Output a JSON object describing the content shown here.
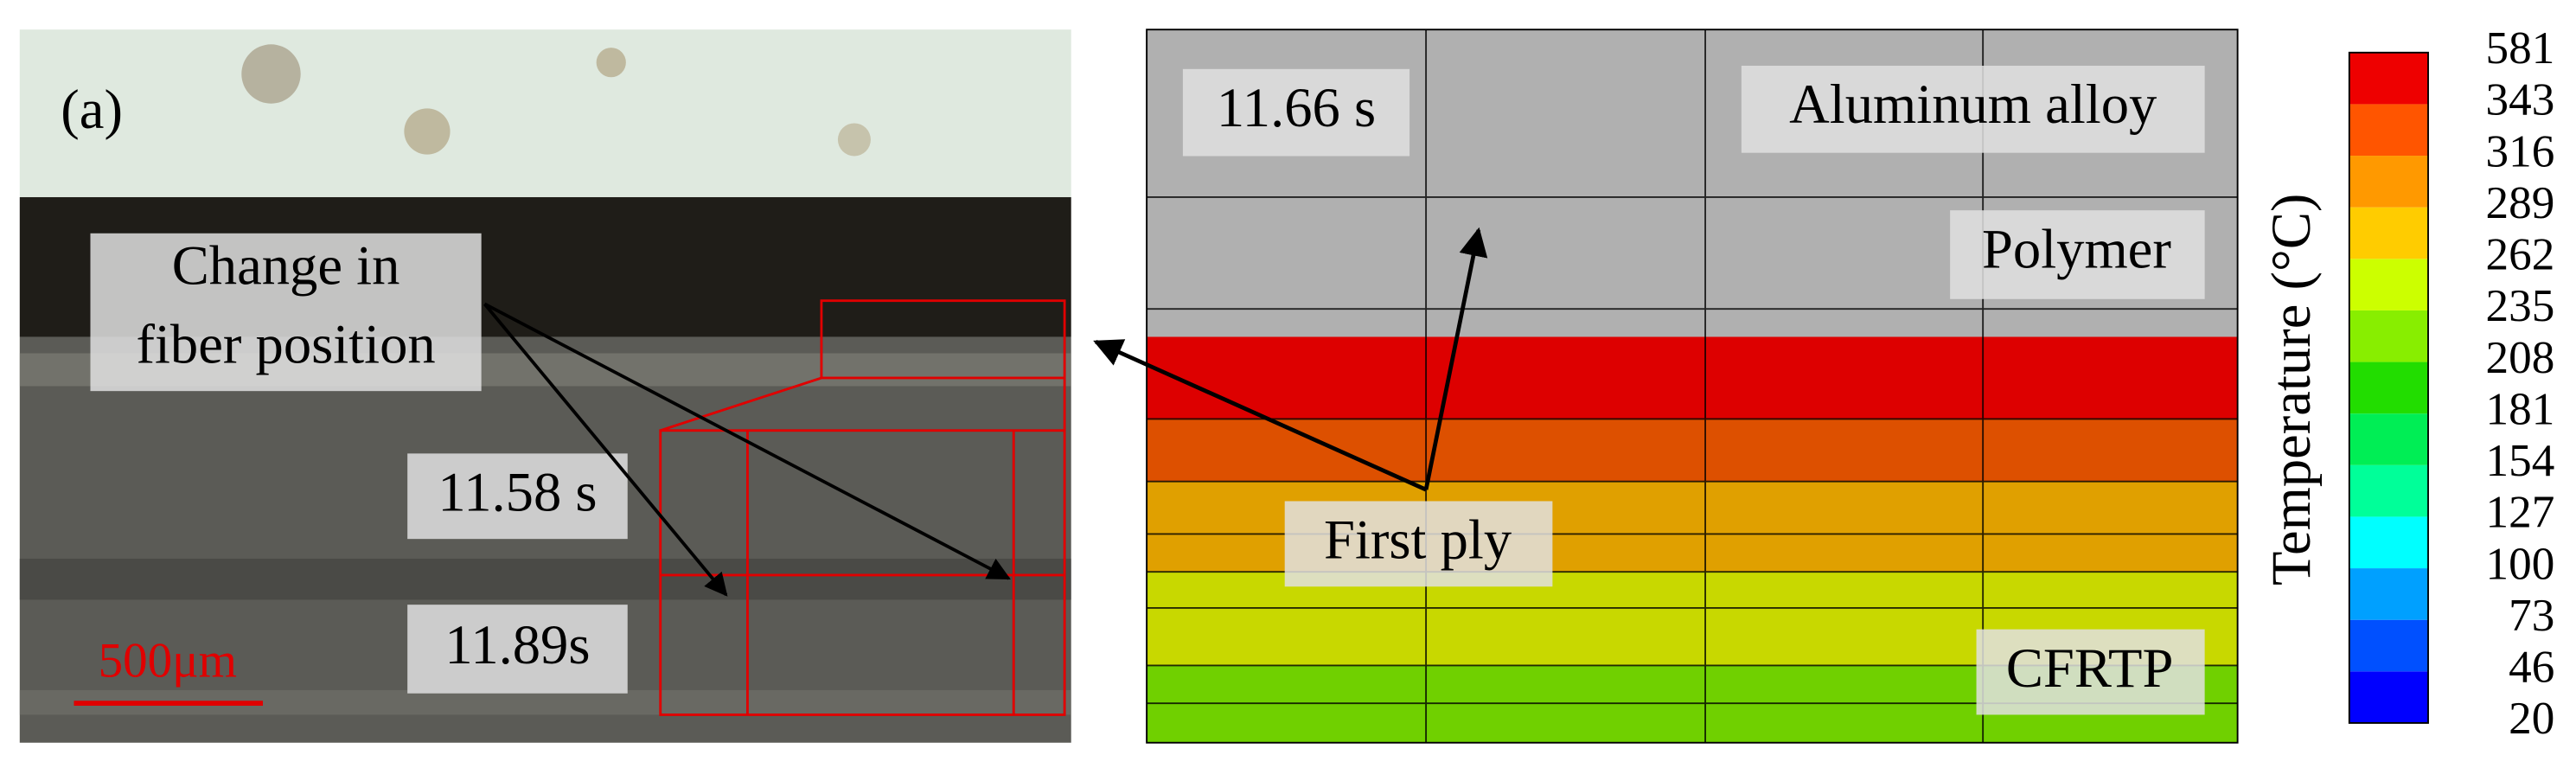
{
  "panel_label": "(a)",
  "micrograph": {
    "annotation": "Change in fiber position",
    "time_top": "11.58 s",
    "time_bottom": "11.89s",
    "scale_bar": "500μm"
  },
  "simulation": {
    "time": "11.66 s",
    "layers": [
      "Aluminum alloy",
      "Polymer",
      "First ply",
      "CFRTP"
    ]
  },
  "colorbar": {
    "title": "Temperature (°C)",
    "ticks": [
      20,
      46,
      73,
      100,
      127,
      154,
      181,
      208,
      235,
      262,
      289,
      316,
      343,
      581
    ],
    "colors": [
      "#0000ff",
      "#0050ff",
      "#00a0ff",
      "#00ffff",
      "#00ff99",
      "#00ee55",
      "#22dd00",
      "#88ee00",
      "#ccff00",
      "#ffcc00",
      "#ff9900",
      "#ff5500",
      "#ee0000"
    ],
    "top_color": "#c8c8c8"
  }
}
